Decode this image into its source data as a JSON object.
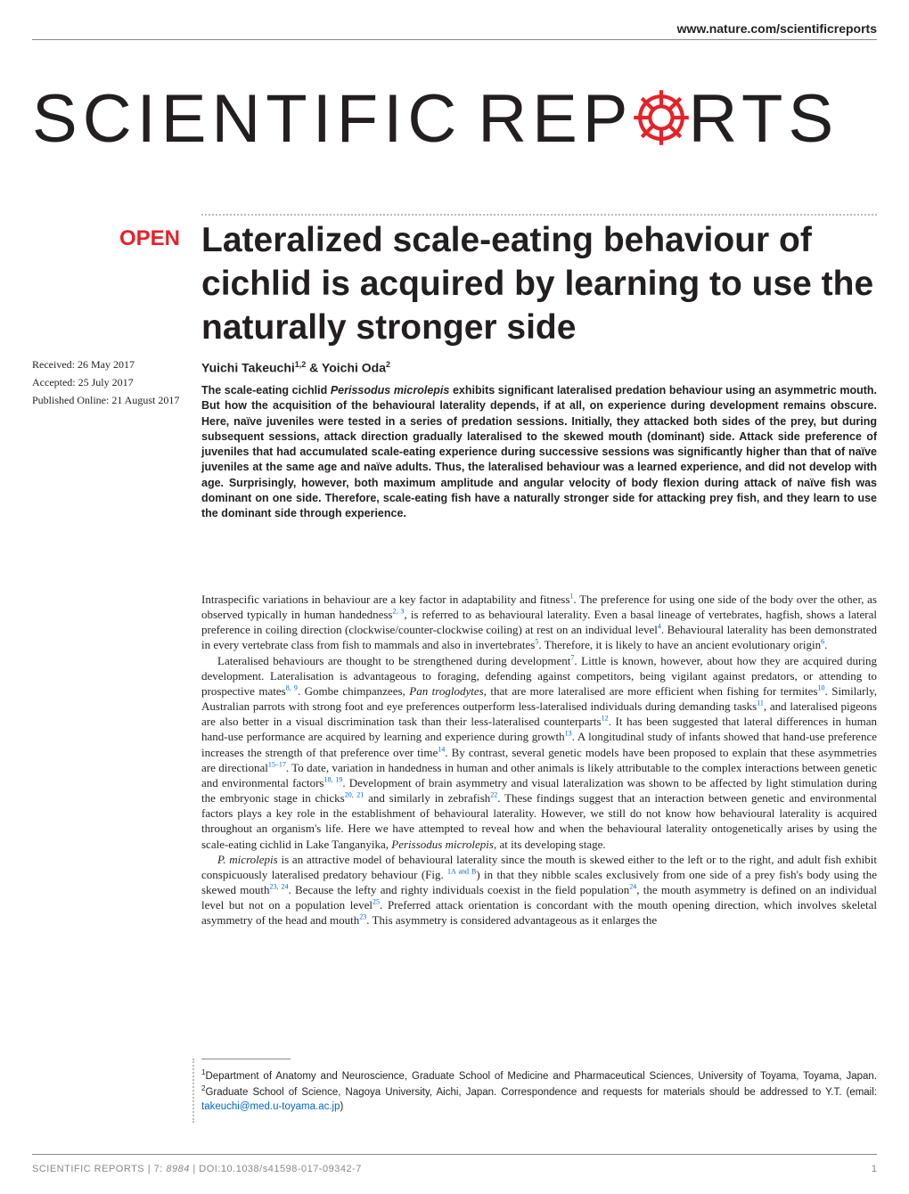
{
  "header": {
    "url": "www.nature.com/scientificreports"
  },
  "logo": {
    "part1": "SCIENTIFIC",
    "part2": "REP",
    "part3": "RTS",
    "gear_color": "#e62129"
  },
  "badge": {
    "text": "OPEN"
  },
  "title": "Lateralized scale-eating behaviour of cichlid is acquired by learning to use the naturally stronger side",
  "sidebar": {
    "received": "Received: 26 May 2017",
    "accepted": "Accepted: 25 July 2017",
    "published": "Published Online: 21 August 2017"
  },
  "authors": {
    "line": "Yuichi Takeuchi",
    "sup1": "1,2",
    "amp": " & Yoichi Oda",
    "sup2": "2"
  },
  "abstract": "The scale-eating cichlid <em>Perissodus microlepis</em> exhibits significant lateralised predation behaviour using an asymmetric mouth. But how the acquisition of the behavioural laterality depends, if at all, on experience during development remains obscure. Here, naïve juveniles were tested in a series of predation sessions. Initially, they attacked both sides of the prey, but during subsequent sessions, attack direction gradually lateralised to the skewed mouth (dominant) side. Attack side preference of juveniles that had accumulated scale-eating experience during successive sessions was significantly higher than that of naïve juveniles at the same age and naïve adults. Thus, the lateralised behaviour was a learned experience, and did not develop with age. Surprisingly, however, both maximum amplitude and angular velocity of body flexion during attack of naïve fish was dominant on one side. Therefore, scale-eating fish have a naturally stronger side for attacking prey fish, and they learn to use the dominant side through experience.",
  "body": {
    "para1": "Intraspecific variations in behaviour are a key factor in adaptability and fitness<sup>1</sup>. The preference for using one side of the body over the other, as observed typically in human handedness<sup>2, 3</sup>, is referred to as behavioural laterality. Even a basal lineage of vertebrates, hagfish, shows a lateral preference in coiling direction (clockwise/counter-clockwise coiling) at rest on an individual level<sup>4</sup>. Behavioural laterality has been demonstrated in every vertebrate class from fish to mammals and also in invertebrates<sup>5</sup>. Therefore, it is likely to have an ancient evolutionary origin<sup>6</sup>.",
    "para2": "Lateralised behaviours are thought to be strengthened during development<sup>7</sup>. Little is known, however, about how they are acquired during development. Lateralisation is advantageous to foraging, defending against competitors, being vigilant against predators, or attending to prospective mates<sup>8, 9</sup>. Gombe chimpanzees, <em>Pan troglodytes</em>, that are more lateralised are more efficient when fishing for termites<sup>10</sup>. Similarly, Australian parrots with strong foot and eye preferences outperform less-lateralised individuals during demanding tasks<sup>11</sup>, and lateralised pigeons are also better in a visual discrimination task than their less-lateralised counterparts<sup>12</sup>. It has been suggested that lateral differences in human hand-use performance are acquired by learning and experience during growth<sup>13</sup>. A longitudinal study of infants showed that hand-use preference increases the strength of that preference over time<sup>14</sup>. By contrast, several genetic models have been proposed to explain that these asymmetries are directional<sup>15–17</sup>. To date, variation in handedness in human and other animals is likely attributable to the complex interactions between genetic and environmental factors<sup>18, 19</sup>. Development of brain asymmetry and visual lateralization was shown to be affected by light stimulation during the embryonic stage in chicks<sup>20, 21</sup> and similarly in zebrafish<sup>22</sup>. These findings suggest that an interaction between genetic and environmental factors plays a key role in the establishment of behavioural laterality. However, we still do not know how behavioural laterality is acquired throughout an organism's life. Here we have attempted to reveal how and when the behavioural laterality ontogenetically arises by using the scale-eating cichlid in Lake Tanganyika, <em>Perissodus microlepis</em>, at its developing stage.",
    "para3": "<em>P. microlepis</em> is an attractive model of behavioural laterality since the mouth is skewed either to the left or to the right, and adult fish exhibit conspicuously lateralised predatory behaviour (Fig. <sup>1A and B</sup>) in that they nibble scales exclusively from one side of a prey fish's body using the skewed mouth<sup>23, 24</sup>. Because the lefty and righty individuals coexist in the field population<sup>24</sup>, the mouth asymmetry is defined on an individual level but not on a population level<sup>25</sup>. Preferred attack orientation is concordant with the mouth opening direction, which involves skeletal asymmetry of the head and mouth<sup>23</sup>. This asymmetry is considered advantageous as it enlarges the"
  },
  "affiliations": "<sup>1</sup>Department of Anatomy and Neuroscience, Graduate School of Medicine and Pharmaceutical Sciences, University of Toyama, Toyama, Japan. <sup>2</sup>Graduate School of Science, Nagoya University, Aichi, Japan. Correspondence and requests for materials should be addressed to Y.T. (email: <span class=\"email\">takeuchi@med.u-toyama.ac.jp</span>)",
  "footer": {
    "citation": "SCIENTIFIC REPORTS | 7: <em>8984</em> | DOI:10.1038/s41598-017-09342-7",
    "page": "1"
  }
}
